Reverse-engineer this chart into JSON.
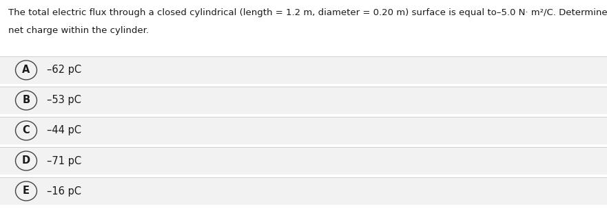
{
  "question_line1": "The total electric flux through a closed cylindrical (length = 1.2 m, diameter = 0.20 m) surface is equal to–5.0 N· m²/C. Determine the",
  "question_line2": "net charge within the cylinder.",
  "options": [
    {
      "label": "A",
      "text": "–62 pC"
    },
    {
      "label": "B",
      "text": "–53 pC"
    },
    {
      "label": "C",
      "text": "–44 pC"
    },
    {
      "label": "D",
      "text": "–71 pC"
    },
    {
      "label": "E",
      "text": "–16 pC"
    }
  ],
  "bg_color": "#ffffff",
  "option_bg_color": "#f2f2f2",
  "text_color": "#1a1a1a",
  "circle_edge_color": "#444444",
  "question_fontsize": 9.5,
  "option_fontsize": 10.5,
  "label_fontsize": 10.5,
  "separator_color": "#d0d0d0",
  "fig_width": 8.81,
  "fig_height": 3.23,
  "dpi": 100
}
